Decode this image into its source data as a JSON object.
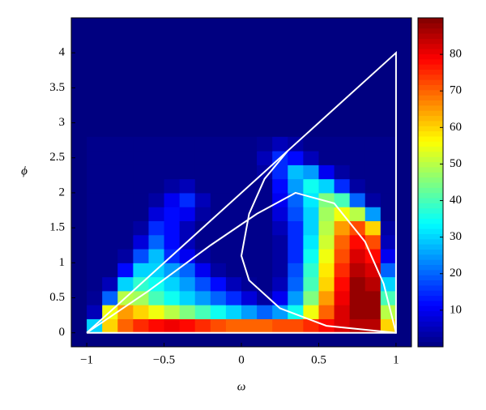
{
  "chart_data": {
    "type": "contourf",
    "xlabel": "ω",
    "ylabel": "ϕ",
    "xlim": [
      -1.1,
      1.1
    ],
    "ylim": [
      -0.2,
      4.5
    ],
    "xticks": [
      {
        "value": -1,
        "label": "−1"
      },
      {
        "value": -0.5,
        "label": "−0.5"
      },
      0,
      0.5,
      1
    ],
    "yticks": [
      0,
      0.5,
      1,
      1.5,
      2,
      2.5,
      3,
      3.5,
      4
    ],
    "zlim": [
      0,
      90
    ],
    "zticks": [
      10,
      20,
      30,
      40,
      50,
      60,
      70,
      80
    ],
    "colormap": "jet",
    "x": [
      -0.95,
      -0.85,
      -0.75,
      -0.65,
      -0.55,
      -0.45,
      -0.35,
      -0.25,
      -0.15,
      -0.05,
      0.05,
      0.15,
      0.25,
      0.35,
      0.45,
      0.55,
      0.65,
      0.75,
      0.85,
      0.95
    ],
    "y": [
      0.1,
      0.3,
      0.5,
      0.7,
      0.9,
      1.1,
      1.3,
      1.5,
      1.7,
      1.9,
      2.1,
      2.3,
      2.5,
      2.7
    ],
    "z": [
      [
        30,
        60,
        70,
        75,
        78,
        80,
        78,
        75,
        72,
        70,
        70,
        70,
        72,
        72,
        75,
        78,
        82,
        85,
        85,
        60
      ],
      [
        5,
        55,
        65,
        60,
        55,
        50,
        45,
        40,
        35,
        30,
        25,
        20,
        25,
        35,
        55,
        70,
        82,
        88,
        88,
        50
      ],
      [
        2,
        20,
        50,
        48,
        40,
        35,
        30,
        25,
        20,
        15,
        8,
        3,
        10,
        25,
        45,
        65,
        80,
        88,
        88,
        40
      ],
      [
        1,
        5,
        30,
        38,
        35,
        30,
        25,
        18,
        12,
        5,
        2,
        1,
        5,
        20,
        40,
        60,
        78,
        88,
        85,
        30
      ],
      [
        1,
        1,
        12,
        30,
        30,
        25,
        20,
        10,
        3,
        1,
        1,
        1,
        3,
        18,
        38,
        58,
        75,
        85,
        82,
        20
      ],
      [
        1,
        1,
        3,
        18,
        28,
        15,
        10,
        3,
        1,
        1,
        1,
        1,
        3,
        15,
        35,
        55,
        72,
        82,
        78,
        10
      ],
      [
        1,
        1,
        1,
        8,
        20,
        12,
        5,
        1,
        1,
        1,
        1,
        1,
        3,
        15,
        32,
        52,
        70,
        78,
        72,
        5
      ],
      [
        1,
        1,
        1,
        3,
        15,
        12,
        5,
        1,
        1,
        1,
        1,
        1,
        5,
        15,
        30,
        50,
        65,
        72,
        60,
        3
      ],
      [
        1,
        1,
        1,
        1,
        8,
        12,
        10,
        3,
        1,
        1,
        1,
        1,
        8,
        18,
        30,
        48,
        55,
        50,
        25,
        1
      ],
      [
        1,
        1,
        1,
        1,
        3,
        10,
        15,
        5,
        1,
        1,
        1,
        1,
        10,
        20,
        32,
        45,
        40,
        20,
        3,
        1
      ],
      [
        1,
        1,
        1,
        1,
        1,
        3,
        5,
        1,
        1,
        1,
        1,
        1,
        12,
        25,
        35,
        30,
        15,
        3,
        1,
        1
      ],
      [
        1,
        1,
        1,
        1,
        1,
        1,
        1,
        1,
        1,
        1,
        1,
        3,
        15,
        28,
        25,
        10,
        3,
        1,
        1,
        1
      ],
      [
        1,
        1,
        1,
        1,
        1,
        1,
        1,
        1,
        1,
        1,
        1,
        5,
        15,
        12,
        5,
        1,
        1,
        1,
        1,
        1
      ],
      [
        1,
        1,
        1,
        1,
        1,
        1,
        1,
        1,
        1,
        1,
        1,
        2,
        5,
        3,
        1,
        1,
        1,
        1,
        1,
        1
      ]
    ],
    "lines": [
      {
        "color": "#ffffff",
        "x": [
          -1,
          1,
          1,
          -1
        ],
        "y": [
          0,
          4,
          0,
          0
        ]
      },
      {
        "color": "#ffffff",
        "x": [
          -1,
          -0.6,
          -0.2,
          0.1,
          0.35,
          0.6,
          0.8,
          0.92,
          1
        ],
        "y": [
          0,
          0.6,
          1.25,
          1.7,
          2.0,
          1.85,
          1.3,
          0.7,
          0
        ]
      },
      {
        "color": "#ffffff",
        "x": [
          0.3,
          0.15,
          0.05,
          0,
          0.05,
          0.25,
          0.55,
          1
        ],
        "y": [
          2.6,
          2.2,
          1.7,
          1.1,
          0.75,
          0.35,
          0.1,
          0
        ]
      }
    ]
  }
}
